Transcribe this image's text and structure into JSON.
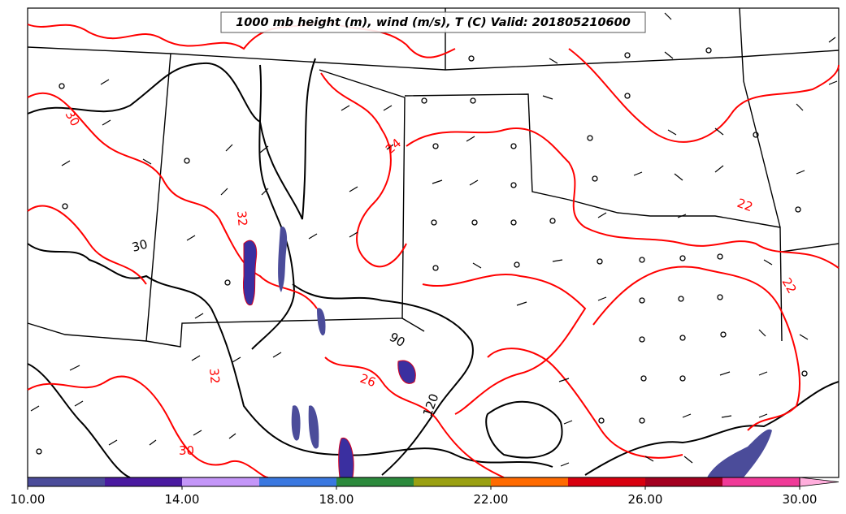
{
  "title": "1000 mb height (m), wind (m/s), T (C) Valid: 201805210600",
  "colors": {
    "temperature_contour": "#ff0000",
    "height_contour": "#000000",
    "borders": "#000000",
    "fill_dark": "#3a2fa0"
  },
  "contour_labels": {
    "temperature": [
      "30",
      "24",
      "22",
      "22",
      "32",
      "32",
      "26",
      "30"
    ],
    "height": [
      "30",
      "90",
      "120"
    ]
  },
  "colorbar": {
    "ticks": [
      "10.00",
      "14.00",
      "18.00",
      "22.00",
      "26.00",
      "30.00"
    ],
    "segments": [
      "#4b4c9a",
      "#4a1aa0",
      "#c496f8",
      "#3a78e0",
      "#2c8a3c",
      "#9aa012",
      "#ff6a00",
      "#d8000f",
      "#a30020",
      "#f03a98"
    ],
    "extend_color": "#ffaedc"
  }
}
